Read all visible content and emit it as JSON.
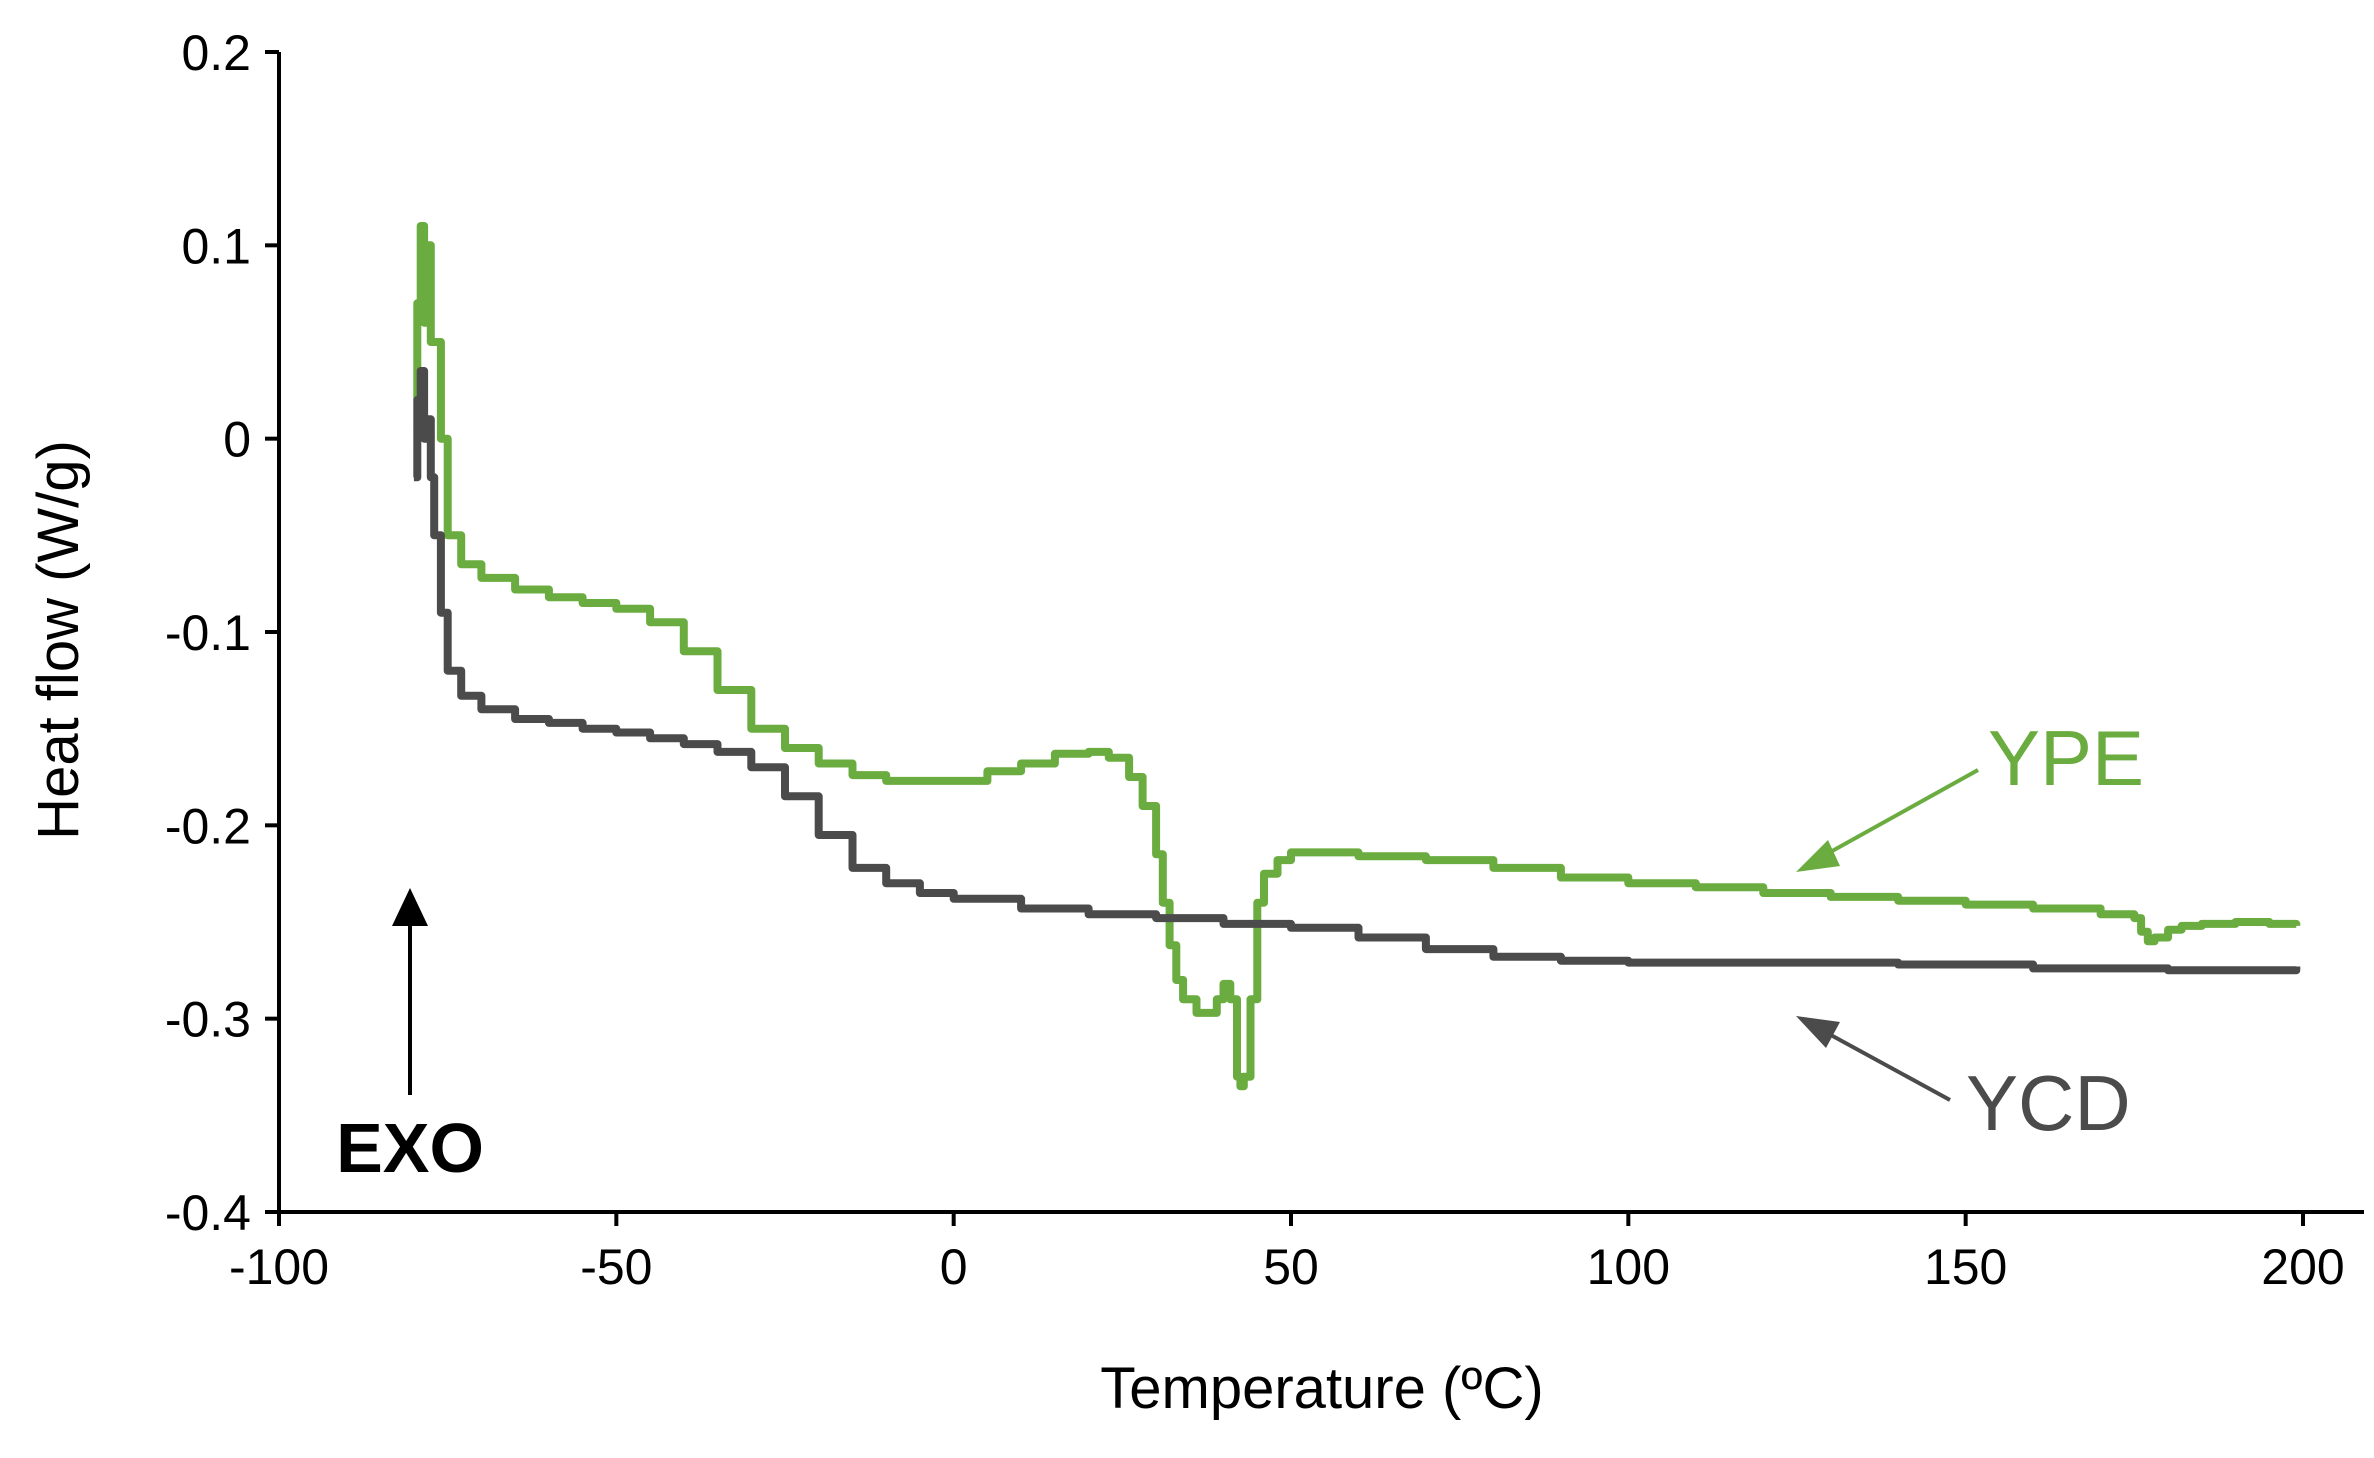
{
  "chart_data": {
    "type": "line",
    "title": "",
    "xlabel": "Temperature  (ºC)",
    "ylabel": "Heat flow (W/g)",
    "xlim": [
      -100,
      200
    ],
    "ylim": [
      -0.4,
      0.2
    ],
    "x_ticks": [
      -100,
      -50,
      0,
      50,
      100,
      150,
      200
    ],
    "y_ticks": [
      -0.4,
      -0.3,
      -0.2,
      -0.1,
      0,
      0.1,
      0.2
    ],
    "x_tick_labels": [
      "-100",
      "-50",
      "0",
      "50",
      "100",
      "150",
      "200"
    ],
    "y_tick_labels": [
      "-0.4",
      "-0.3",
      "-0.2",
      "-0.1",
      "0",
      "0.1",
      "0.2"
    ],
    "grid": false,
    "series": [
      {
        "name": "YPE",
        "color": "#6aac3f",
        "x": [
          -80,
          -79.5,
          -79,
          -78.5,
          -78,
          -77.5,
          -77,
          -76,
          -75,
          -73,
          -70,
          -65,
          -60,
          -55,
          -50,
          -45,
          -40,
          -35,
          -30,
          -25,
          -20,
          -15,
          -10,
          -5,
          0,
          5,
          10,
          15,
          20,
          23,
          26,
          28,
          30,
          31,
          32,
          33,
          34,
          36,
          38,
          39,
          40,
          41,
          42,
          42.5,
          43,
          44,
          45,
          46,
          48,
          50,
          55,
          60,
          70,
          80,
          90,
          100,
          110,
          120,
          130,
          140,
          150,
          160,
          170,
          175,
          176,
          177,
          178,
          180,
          182,
          185,
          190,
          195,
          199
        ],
        "y": [
          0.02,
          0.07,
          0.11,
          0.06,
          0.1,
          0.05,
          0.05,
          0.0,
          -0.05,
          -0.065,
          -0.072,
          -0.078,
          -0.082,
          -0.085,
          -0.088,
          -0.095,
          -0.11,
          -0.13,
          -0.15,
          -0.16,
          -0.168,
          -0.174,
          -0.177,
          -0.177,
          -0.177,
          -0.172,
          -0.168,
          -0.163,
          -0.162,
          -0.165,
          -0.175,
          -0.19,
          -0.215,
          -0.24,
          -0.262,
          -0.28,
          -0.29,
          -0.297,
          -0.297,
          -0.29,
          -0.282,
          -0.29,
          -0.33,
          -0.335,
          -0.33,
          -0.29,
          -0.24,
          -0.225,
          -0.218,
          -0.214,
          -0.214,
          -0.216,
          -0.218,
          -0.222,
          -0.227,
          -0.23,
          -0.232,
          -0.235,
          -0.237,
          -0.239,
          -0.241,
          -0.243,
          -0.246,
          -0.248,
          -0.255,
          -0.26,
          -0.258,
          -0.254,
          -0.252,
          -0.251,
          -0.25,
          -0.251,
          -0.252
        ]
      },
      {
        "name": "YCD",
        "color": "#4b4b4b",
        "x": [
          -80,
          -79.5,
          -79,
          -78.5,
          -78,
          -77.5,
          -77,
          -76,
          -75,
          -73,
          -70,
          -65,
          -60,
          -55,
          -50,
          -45,
          -40,
          -35,
          -30,
          -25,
          -20,
          -15,
          -10,
          -5,
          0,
          10,
          20,
          30,
          40,
          50,
          60,
          70,
          80,
          90,
          100,
          120,
          140,
          160,
          180,
          195,
          199
        ],
        "y": [
          -0.02,
          0.02,
          0.035,
          0.0,
          0.01,
          -0.02,
          -0.05,
          -0.09,
          -0.12,
          -0.133,
          -0.14,
          -0.145,
          -0.147,
          -0.15,
          -0.152,
          -0.155,
          -0.158,
          -0.162,
          -0.17,
          -0.185,
          -0.205,
          -0.222,
          -0.23,
          -0.235,
          -0.238,
          -0.243,
          -0.246,
          -0.248,
          -0.251,
          -0.253,
          -0.258,
          -0.264,
          -0.268,
          -0.27,
          -0.271,
          -0.271,
          -0.272,
          -0.274,
          -0.275,
          -0.275,
          -0.273
        ]
      }
    ],
    "annotations": [
      {
        "text": "YPE",
        "color": "#6aac3f"
      },
      {
        "text": "YCD",
        "color": "#4b4b4b"
      },
      {
        "text": "EXO",
        "color": "#000000"
      }
    ]
  }
}
